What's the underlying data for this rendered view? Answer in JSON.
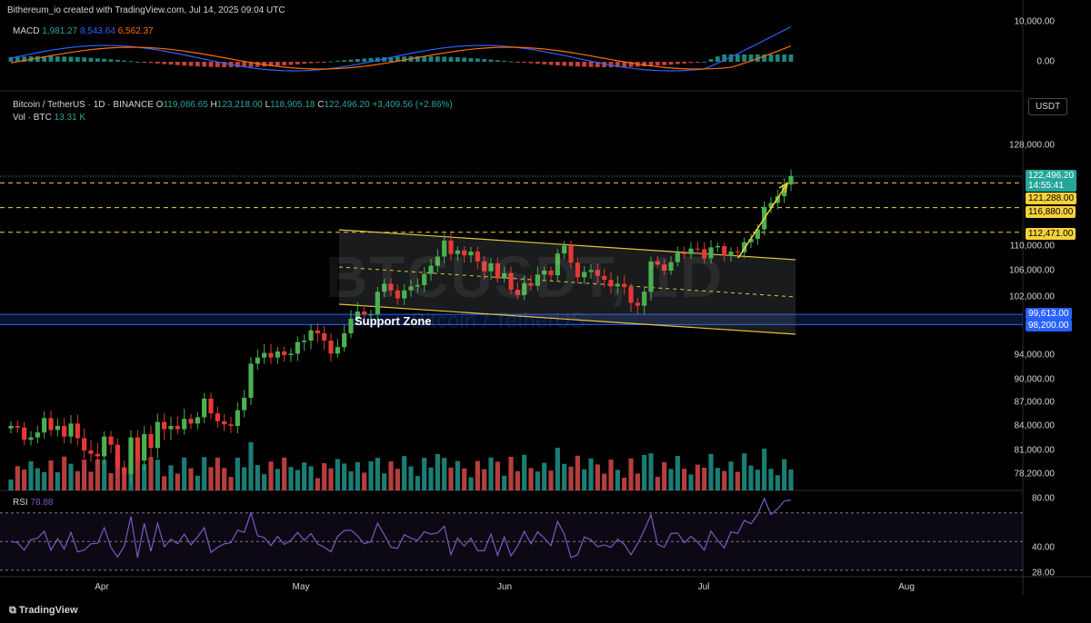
{
  "header": {
    "credit": "Bithereum_io created with TradingView.com, Jul 14, 2025 09:04 UTC"
  },
  "macd": {
    "label": "MACD",
    "v1": "1,981.27",
    "v2": "8,543.64",
    "v3": "6,562.37",
    "ticks": [
      "10,000.00",
      "0.00"
    ]
  },
  "price_header": {
    "symbol": "Bitcoin / TetherUS · 1D · BINANCE",
    "o_label": "O",
    "o": "119,086.65",
    "h_label": "H",
    "h": "123,218.00",
    "l_label": "L",
    "l": "118,905.18",
    "c_label": "C",
    "c": "122,496.20",
    "chg": "+3,409.56 (+2.86%)",
    "vol_label": "Vol · BTC",
    "vol": "13.31 K",
    "currency": "USDT"
  },
  "watermark": {
    "ticker": "BTCUSDT, 1D",
    "name": "Bitcoin / TetherUS"
  },
  "annotation": "Support Zone",
  "levels": {
    "current": "122,496.20",
    "countdown": "14:55:41",
    "l1": "121,288.00",
    "l2": "116,880.00",
    "l3": "112,471.00",
    "l4": "99,613.00",
    "l5": "98,200.00"
  },
  "rsi": {
    "label": "RSI",
    "value": "78.88",
    "ticks": [
      "80.00",
      "40.00",
      "28.00"
    ]
  },
  "months": [
    "Apr",
    "May",
    "Jun",
    "Jul",
    "Aug"
  ],
  "footer": {
    "brand": "TradingView"
  },
  "colors": {
    "up": "#26a69a",
    "down": "#ef5350",
    "green_candle": "#4caf50",
    "red_candle": "#e53935",
    "channel": "#e0c341",
    "level": "#f5d13b",
    "support": "#2962ff",
    "rsi": "#7e57c2",
    "macd": "#2962ff",
    "signal": "#ff6d00"
  },
  "chart_data": {
    "type": "candlestick",
    "symbol": "BTCUSDT",
    "interval": "1D",
    "y_ticks": [
      128000,
      110000,
      106000,
      102000,
      94000,
      90000,
      87000,
      84000,
      81000,
      78200
    ],
    "x_months": [
      "Apr",
      "May",
      "Jun",
      "Jul",
      "Aug"
    ],
    "closes": [
      84000,
      83800,
      82300,
      82600,
      83200,
      85000,
      83500,
      84000,
      82700,
      84300,
      82500,
      81000,
      80600,
      80300,
      82700,
      81700,
      79000,
      78200,
      82600,
      79800,
      83000,
      81300,
      84500,
      83600,
      84000,
      83600,
      84900,
      84300,
      85100,
      87500,
      85600,
      84600,
      84200,
      84000,
      86000,
      87600,
      92600,
      93600,
      94300,
      93600,
      94500,
      94000,
      94200,
      95800,
      96000,
      97400,
      97000,
      96000,
      94200,
      95100,
      97000,
      99000,
      100000,
      99600,
      99600,
      102800,
      104000,
      103000,
      101800,
      103000,
      103600,
      103800,
      105500,
      106800,
      108300,
      111000,
      108700,
      109300,
      108500,
      109100,
      107500,
      105900,
      107200,
      104800,
      105600,
      103100,
      102300,
      104100,
      103700,
      105400,
      106000,
      105300,
      108800,
      110100,
      107300,
      105000,
      105800,
      106100,
      105200,
      104600,
      103600,
      104000,
      103500,
      101200,
      100800,
      102800,
      107500,
      107000,
      106000,
      107400,
      108900,
      108700,
      109600,
      109500,
      108000,
      109800,
      110000,
      108400,
      109100,
      109000,
      110700,
      111300,
      113000,
      117000,
      117700,
      118900,
      121000,
      122500
    ],
    "opens_note": "open of each day equals the previous close",
    "channel_upper": [
      [
        109800,
        0
      ],
      [
        107000,
        1
      ]
    ],
    "support_zone": [
      99613,
      98200
    ],
    "levels": [
      122496.2,
      121288,
      116880,
      112471,
      99613,
      98200
    ],
    "rsi_last": 78.88,
    "rsi_ticks": [
      80,
      40,
      28
    ],
    "macd": {
      "macd": 1981.27,
      "signal": 8543.64,
      "hist": 6562.37
    }
  }
}
